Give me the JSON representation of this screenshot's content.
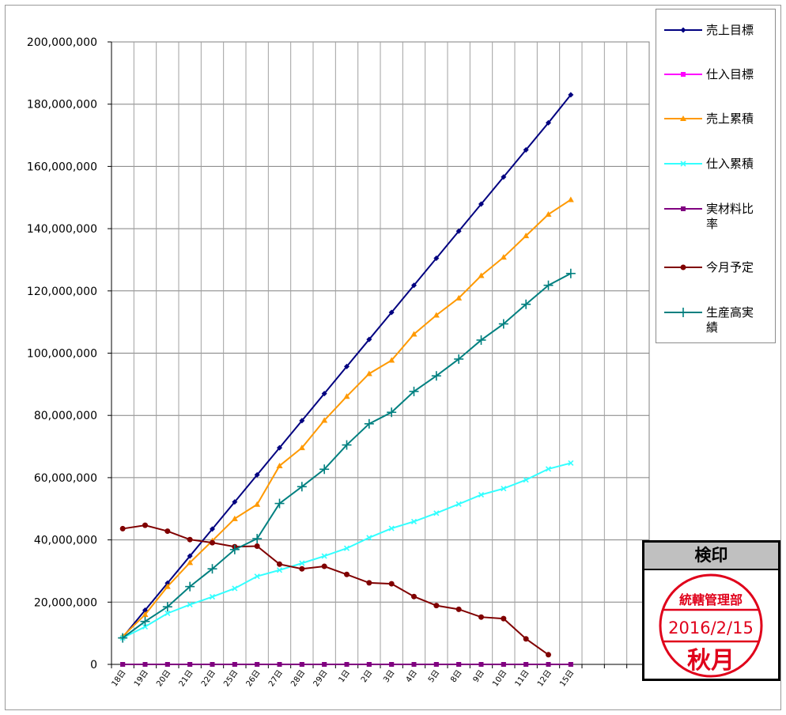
{
  "chart_data": {
    "type": "line",
    "categories": [
      "18日",
      "19日",
      "20日",
      "21日",
      "22日",
      "25日",
      "26日",
      "27日",
      "28日",
      "29日",
      "1日",
      "2日",
      "3日",
      "4日",
      "5日",
      "8日",
      "9日",
      "10日",
      "11日",
      "12日",
      "15日"
    ],
    "yticks": [
      "200,000,000",
      "180,000,000",
      "160,000,000",
      "140,000,000",
      "120,000,000",
      "100,000,000",
      "80,000,000",
      "60,000,000",
      "40,000,000",
      "20,000,000",
      "0"
    ],
    "ylim": [
      0,
      200000000
    ],
    "grid": true,
    "legend_position": "right",
    "series": [
      {
        "name": "売上目標",
        "color": "#000080",
        "marker": "diamond",
        "values": [
          8700000,
          17400000,
          26100000,
          34800000,
          43500000,
          52200000,
          60900000,
          69600000,
          78300000,
          87000000,
          95700000,
          104400000,
          113100000,
          121800000,
          130500000,
          139200000,
          147900000,
          156600000,
          165300000,
          174000000,
          183000000
        ]
      },
      {
        "name": "仕入目標",
        "color": "#ff00ff",
        "marker": "square",
        "values": [
          0,
          0,
          0,
          0,
          0,
          0,
          0,
          0,
          0,
          0,
          0,
          0,
          0,
          0,
          0,
          0,
          0,
          0,
          0,
          0,
          0
        ]
      },
      {
        "name": "売上累積",
        "color": "#ff9900",
        "marker": "triangle",
        "values": [
          9000000,
          16000000,
          25000000,
          32700000,
          39700000,
          46800000,
          51400000,
          63800000,
          69600000,
          78400000,
          86100000,
          93400000,
          97700000,
          106100000,
          112200000,
          117700000,
          124900000,
          130800000,
          137700000,
          144600000,
          149300000
        ]
      },
      {
        "name": "仕入累積",
        "color": "#33ffff",
        "marker": "x",
        "values": [
          8500000,
          12100000,
          16400000,
          19200000,
          21700000,
          24400000,
          28300000,
          30300000,
          32500000,
          34800000,
          37300000,
          40700000,
          43700000,
          45900000,
          48600000,
          51500000,
          54500000,
          56500000,
          59300000,
          62800000,
          64700000
        ]
      },
      {
        "name": "実材料比率",
        "color": "#800080",
        "marker": "square",
        "values": [
          0,
          0,
          0,
          0,
          0,
          0,
          0,
          0,
          0,
          0,
          0,
          0,
          0,
          0,
          0,
          0,
          0,
          0,
          0,
          0,
          0
        ]
      },
      {
        "name": "今月予定",
        "color": "#800000",
        "marker": "circle",
        "values": [
          43600000,
          44700000,
          42800000,
          40100000,
          39100000,
          37800000,
          38000000,
          32200000,
          30700000,
          31500000,
          28900000,
          26200000,
          25900000,
          21800000,
          18900000,
          17700000,
          15200000,
          14700000,
          8200000,
          3100000,
          null
        ]
      },
      {
        "name": "生産高実績",
        "color": "#008080",
        "marker": "plus",
        "values": [
          8500000,
          13800000,
          18500000,
          25000000,
          30700000,
          36900000,
          40400000,
          51700000,
          57100000,
          62700000,
          70500000,
          77300000,
          81000000,
          87700000,
          92700000,
          98100000,
          104200000,
          109400000,
          115700000,
          121800000,
          125600000
        ]
      }
    ]
  },
  "legend": {
    "items": [
      {
        "label": "売上目標"
      },
      {
        "label": "仕入目標"
      },
      {
        "label": "売上累積"
      },
      {
        "label": "仕入累積"
      },
      {
        "label": "実材料比\n率"
      },
      {
        "label": "今月予定"
      },
      {
        "label": "生産高実\n績"
      }
    ]
  },
  "stamp": {
    "header": "検印",
    "seal_top": "統轄管理部",
    "seal_date": "2016/2/15",
    "seal_name": "秋月",
    "seal_color": "#e0001a"
  }
}
